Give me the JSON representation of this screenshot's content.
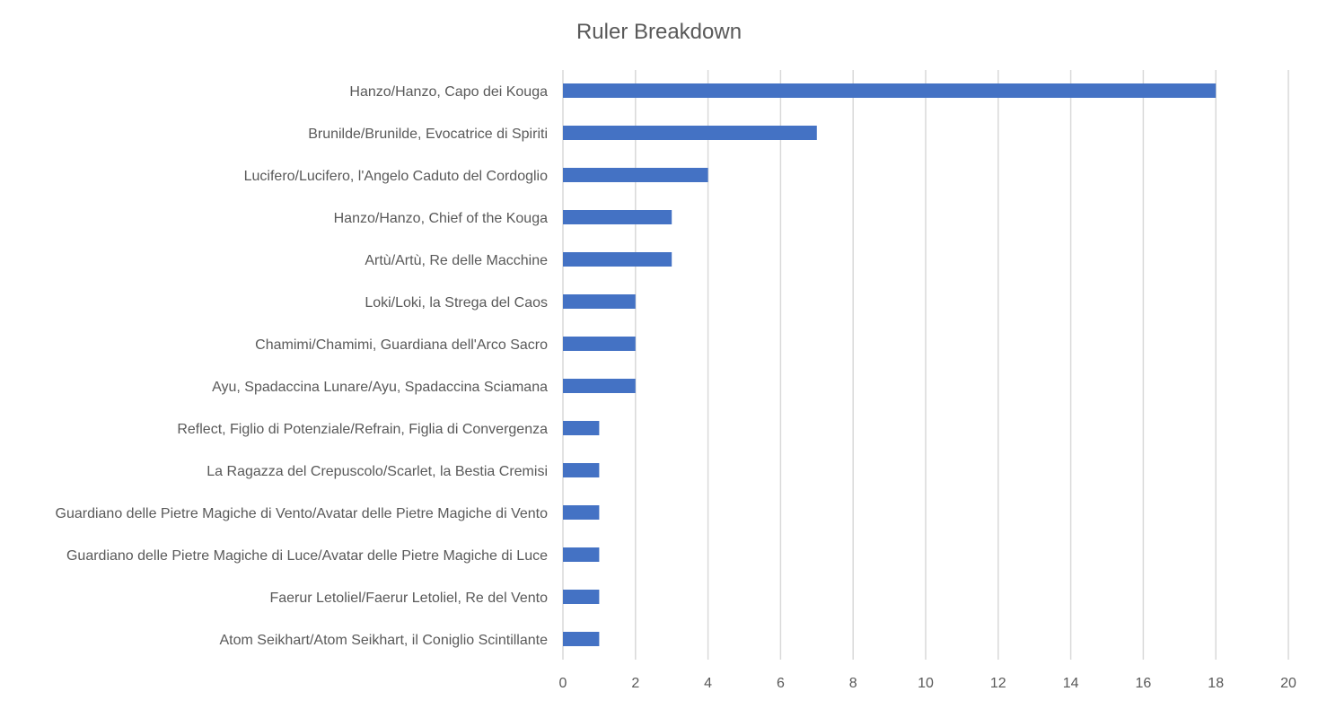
{
  "chart_data": {
    "type": "bar",
    "orientation": "horizontal",
    "title": "Ruler Breakdown",
    "categories": [
      "Hanzo/Hanzo, Capo dei Kouga",
      "Brunilde/Brunilde, Evocatrice di Spiriti",
      "Lucifero/Lucifero, l'Angelo Caduto del Cordoglio",
      "Hanzo/Hanzo, Chief of the Kouga",
      "Artù/Artù, Re delle Macchine",
      "Loki/Loki, la Strega del Caos",
      "Chamimi/Chamimi, Guardiana dell'Arco Sacro",
      "Ayu, Spadaccina Lunare/Ayu, Spadaccina Sciamana",
      "Reflect, Figlio di Potenziale/Refrain, Figlia di Convergenza",
      "La Ragazza del Crepuscolo/Scarlet, la Bestia Cremisi",
      "Guardiano delle Pietre Magiche di Vento/Avatar delle Pietre Magiche di Vento",
      "Guardiano delle Pietre Magiche di Luce/Avatar delle Pietre Magiche di Luce",
      "Faerur Letoliel/Faerur Letoliel, Re del Vento",
      "Atom Seikhart/Atom Seikhart, il Coniglio Scintillante"
    ],
    "values": [
      18,
      7,
      4,
      3,
      3,
      2,
      2,
      2,
      1,
      1,
      1,
      1,
      1,
      1
    ],
    "xlim": [
      0,
      20
    ],
    "xticks": [
      "0",
      "2",
      "4",
      "6",
      "8",
      "10",
      "12",
      "14",
      "16",
      "18",
      "20"
    ],
    "grid": true,
    "legend": "none",
    "bar_color": "#4472C4"
  }
}
